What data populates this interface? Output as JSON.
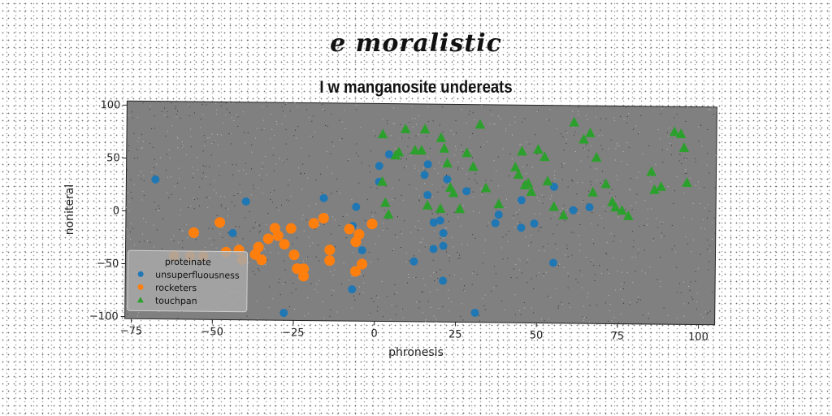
{
  "figure": {
    "title": "e moralistic"
  },
  "chart_data": {
    "type": "scatter",
    "title": "I w manganosite undereats",
    "xlabel": "phronesis",
    "ylabel": "noniteral",
    "xlim": [
      -77,
      105
    ],
    "ylim": [
      -102,
      104
    ],
    "xticks": [
      -75,
      -50,
      -25,
      0,
      25,
      50,
      75,
      100
    ],
    "yticks": [
      -100,
      -50,
      0,
      50,
      100
    ],
    "grid": false,
    "legend": {
      "title": "proteinate",
      "placement": "bottom-left"
    },
    "series": [
      {
        "name": "unsuperfluousness",
        "color": "#1f77b4",
        "marker": "circle",
        "points": [
          [
            -68,
            30
          ],
          [
            -40,
            10
          ],
          [
            -44,
            -20
          ],
          [
            -16,
            14
          ],
          [
            -6,
            6
          ],
          [
            -7,
            -12
          ],
          [
            -4,
            -35
          ],
          [
            -7,
            -72
          ],
          [
            -28,
            -95
          ],
          [
            1,
            45
          ],
          [
            4,
            56
          ],
          [
            1,
            30
          ],
          [
            15,
            37
          ],
          [
            16,
            47
          ],
          [
            16,
            18
          ],
          [
            22,
            33
          ],
          [
            28,
            22
          ],
          [
            18,
            -8
          ],
          [
            20,
            -6
          ],
          [
            21,
            -18
          ],
          [
            21,
            -30
          ],
          [
            18,
            -33
          ],
          [
            12,
            -45
          ],
          [
            21,
            -63
          ],
          [
            31,
            -93
          ],
          [
            37,
            -8
          ],
          [
            38,
            0
          ],
          [
            45,
            14
          ],
          [
            45,
            -12
          ],
          [
            49,
            -8
          ],
          [
            55,
            27
          ],
          [
            55,
            -45
          ],
          [
            61,
            5
          ],
          [
            66,
            8
          ]
        ]
      },
      {
        "name": "rocketers",
        "color": "#ff7f0e",
        "marker": "circle",
        "points": [
          [
            -62,
            -42
          ],
          [
            -57,
            -42
          ],
          [
            -56,
            -20
          ],
          [
            -53,
            -42
          ],
          [
            -48,
            -10
          ],
          [
            -46,
            -38
          ],
          [
            -42,
            -36
          ],
          [
            -41,
            -45
          ],
          [
            -37,
            -40
          ],
          [
            -36,
            -33
          ],
          [
            -35,
            -45
          ],
          [
            -33,
            -25
          ],
          [
            -31,
            -15
          ],
          [
            -30,
            -22
          ],
          [
            -28,
            -30
          ],
          [
            -26,
            -15
          ],
          [
            -25,
            -40
          ],
          [
            -24,
            -53
          ],
          [
            -22,
            -53
          ],
          [
            -22,
            -60
          ],
          [
            -19,
            -10
          ],
          [
            -16,
            -5
          ],
          [
            -14,
            -35
          ],
          [
            -14,
            -45
          ],
          [
            -8,
            -15
          ],
          [
            -6,
            -27
          ],
          [
            -5,
            -20
          ],
          [
            -4,
            -48
          ],
          [
            -1,
            -10
          ],
          [
            -6,
            -55
          ]
        ]
      },
      {
        "name": "touchpan",
        "color": "#2ca02c",
        "marker": "triangle",
        "points": [
          [
            2,
            75
          ],
          [
            2,
            30
          ],
          [
            3,
            10
          ],
          [
            4,
            -1
          ],
          [
            6,
            55
          ],
          [
            7,
            58
          ],
          [
            9,
            80
          ],
          [
            12,
            60
          ],
          [
            14,
            60
          ],
          [
            15,
            80
          ],
          [
            16,
            8
          ],
          [
            20,
            5
          ],
          [
            20,
            72
          ],
          [
            21,
            62
          ],
          [
            22,
            48
          ],
          [
            23,
            25
          ],
          [
            24,
            20
          ],
          [
            26,
            5
          ],
          [
            28,
            58
          ],
          [
            30,
            45
          ],
          [
            32,
            85
          ],
          [
            34,
            25
          ],
          [
            38,
            10
          ],
          [
            43,
            45
          ],
          [
            44,
            38
          ],
          [
            45,
            60
          ],
          [
            46,
            28
          ],
          [
            47,
            30
          ],
          [
            48,
            22
          ],
          [
            50,
            62
          ],
          [
            52,
            55
          ],
          [
            53,
            32
          ],
          [
            55,
            8
          ],
          [
            58,
            0
          ],
          [
            61,
            88
          ],
          [
            64,
            72
          ],
          [
            66,
            78
          ],
          [
            67,
            22
          ],
          [
            68,
            55
          ],
          [
            71,
            30
          ],
          [
            73,
            13
          ],
          [
            74,
            8
          ],
          [
            76,
            5
          ],
          [
            78,
            0
          ],
          [
            85,
            42
          ],
          [
            86,
            25
          ],
          [
            88,
            28
          ],
          [
            92,
            80
          ],
          [
            94,
            78
          ],
          [
            95,
            65
          ],
          [
            96,
            32
          ]
        ]
      }
    ]
  }
}
